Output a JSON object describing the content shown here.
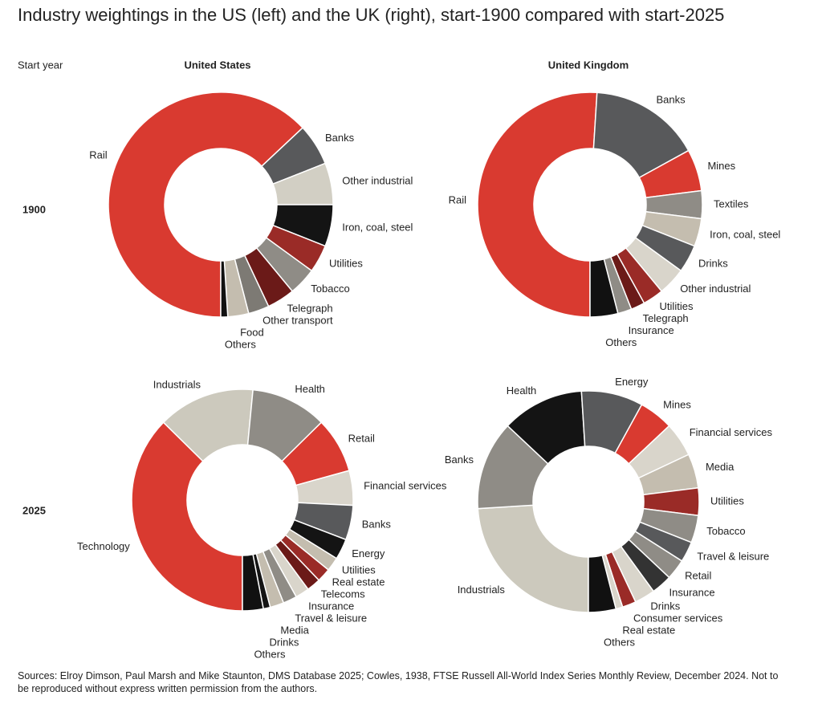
{
  "title": "Industry weightings in the US (left) and the UK (right), start-1900 compared with start-2025",
  "row_axis_label": "Start year",
  "column_headers": [
    "United States",
    "United Kingdom"
  ],
  "row_headers": [
    "1900",
    "2025"
  ],
  "source": "Sources: Elroy Dimson, Paul Marsh and Mike Staunton, DMS Database 2025; Cowles, 1938, FTSE Russell All-World Index Series Monthly Review, December 2024. Not to be reproduced without express written permission from the authors.",
  "chart_data": [
    {
      "type": "donut",
      "categories": [
        "Rail",
        "Banks",
        "Other industrial",
        "Iron, coal, steel",
        "Utilities",
        "Tobacco",
        "Telegraph",
        "Other transport",
        "Food",
        "Others"
      ],
      "values": [
        63,
        6,
        6,
        6,
        4,
        4,
        4,
        3,
        3,
        1
      ],
      "colors": [
        "#d93a30",
        "#58595b",
        "#d2cfc4",
        "#141414",
        "#9a2b27",
        "#8f8c86",
        "#6b1a18",
        "#7d7a74",
        "#c4bdaf",
        "#111111"
      ]
    },
    {
      "type": "donut",
      "categories": [
        "Rail",
        "Banks",
        "Mines",
        "Textiles",
        "Iron, coal, steel",
        "Drinks",
        "Other industrial",
        "Utilities",
        "Telegraph",
        "Insurance",
        "Others"
      ],
      "values": [
        51,
        16,
        6,
        4,
        4,
        4,
        4,
        3,
        2,
        2,
        4
      ],
      "colors": [
        "#d93a30",
        "#58595b",
        "#d93a30",
        "#8f8c86",
        "#c4bdaf",
        "#58595b",
        "#d9d5cb",
        "#9a2b27",
        "#6b1a18",
        "#8f8c86",
        "#111111"
      ]
    },
    {
      "type": "donut",
      "categories": [
        "Technology",
        "Industrials",
        "Health",
        "Retail",
        "Financial services",
        "Banks",
        "Energy",
        "Utilities",
        "Real estate",
        "Telecoms",
        "Insurance",
        "Travel & leisure",
        "Media",
        "Drinks",
        "Others"
      ],
      "values": [
        37,
        14,
        11,
        8,
        5,
        5,
        3,
        2,
        2,
        2,
        2,
        2,
        2,
        1,
        3
      ],
      "colors": [
        "#d93a30",
        "#ccc9bd",
        "#8f8c86",
        "#d93a30",
        "#d9d5cb",
        "#58595b",
        "#141414",
        "#c4bdaf",
        "#9a2b27",
        "#6b1a18",
        "#d9d5cb",
        "#8f8c86",
        "#c4bdaf",
        "#141414",
        "#111111"
      ]
    },
    {
      "type": "donut",
      "categories": [
        "Industrials",
        "Banks",
        "Health",
        "Energy",
        "Mines",
        "Financial services",
        "Media",
        "Utilities",
        "Tobacco",
        "Travel & leisure",
        "Retail",
        "Insurance",
        "Drinks",
        "Consumer services",
        "Real estate",
        "Others"
      ],
      "values": [
        24,
        13,
        12,
        9,
        5,
        5,
        5,
        4,
        4,
        3,
        3,
        3,
        3,
        2,
        1,
        4
      ],
      "colors": [
        "#ccc9bd",
        "#8f8c86",
        "#141414",
        "#58595b",
        "#d93a30",
        "#d9d5cb",
        "#c4bdaf",
        "#9a2b27",
        "#8f8c86",
        "#58595b",
        "#8f8c86",
        "#333333",
        "#d9d5cb",
        "#9a2b27",
        "#d9d5cb",
        "#111111"
      ]
    }
  ]
}
